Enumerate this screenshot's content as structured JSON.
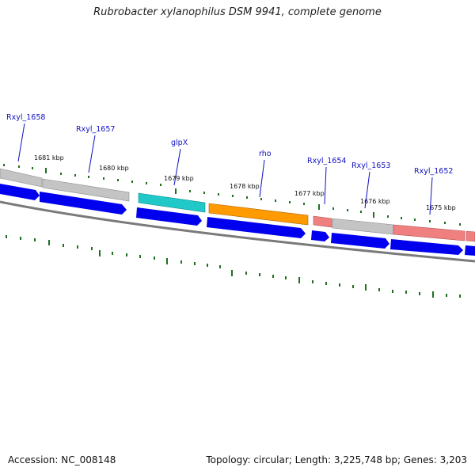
{
  "title": "Rubrobacter xylanophilus DSM 9941, complete genome",
  "footer": {
    "accession": "Accession: NC_008148",
    "summary": "Topology: circular; Length: 3,225,748 bp; Genes: 3,203"
  },
  "colors": {
    "grey_gene": "#c4c4c4",
    "cyan_gene": "#20c8c8",
    "orange_gene": "#ff9a00",
    "pink_gene": "#f08080",
    "cds_arrow": "#0000ee",
    "tick": "#207020",
    "backbone": "#808080"
  },
  "genes": [
    {
      "label": "Rxyl_1658",
      "color": "grey"
    },
    {
      "label": "Rxyl_1657",
      "color": "grey"
    },
    {
      "label": "glpX",
      "color": "cyan"
    },
    {
      "label": "rho",
      "color": "orange"
    },
    {
      "label": "Rxyl_1654",
      "color": "pink"
    },
    {
      "label": "Rxyl_1653",
      "color": "grey"
    },
    {
      "label": "Rxyl_1652",
      "color": "pink"
    }
  ],
  "kbp_labels": [
    "1681 kbp",
    "1680 kbp",
    "1679 kbp",
    "1678 kbp",
    "1677 kbp",
    "1676 kbp",
    "1675 kbp"
  ]
}
